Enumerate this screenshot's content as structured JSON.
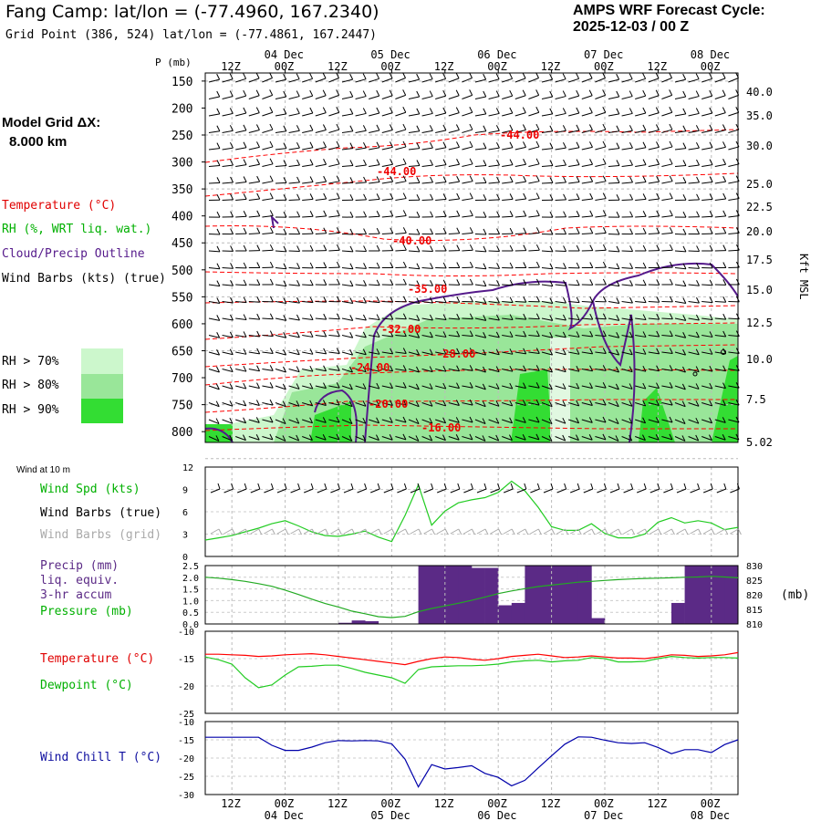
{
  "header": {
    "title": "Fang Camp:  lat/lon = (-77.4960, 167.2340)",
    "grid_point": "Grid Point (386, 524) lat/lon = (-77.4861, 167.2447)",
    "cycle_line1": "AMPS WRF Forecast Cycle:",
    "cycle_line2": "2025-12-03 / 00  Z",
    "model_grid_line1": "Model Grid ΔX:",
    "model_grid_line2": "8.000 km"
  },
  "legend": {
    "temperature": "Temperature (°C)",
    "rh": "RH (%, WRT liq. wat.)",
    "cloud": "Cloud/Precip Outline",
    "wind_barbs": "Wind Barbs (kts) (true)",
    "rh70": "RH > 70%",
    "rh80": "RH > 80%",
    "rh90": "RH > 90%",
    "kft_msl": "Kft MSL",
    "p_mb": "P (mb)",
    "wind_at_10m": "Wind at 10 m",
    "wind_spd": "Wind Spd (kts)",
    "wind_barbs_true": "Wind Barbs (true)",
    "wind_barbs_grid": "Wind Barbs (grid)",
    "precip1": "Precip (mm)",
    "precip2": "liq. equiv.",
    "precip3": "3-hr accum",
    "pressure": "Pressure (mb)",
    "mb_unit": "(mb)",
    "temp2": "Temperature (°C)",
    "dewpoint": "Dewpoint (°C)",
    "windchill": "Wind Chill T (°C)"
  },
  "colors": {
    "temp": "#ff0000",
    "rh": "#00cc00",
    "cloud": "#551a8b",
    "rh70": "#ccf7cc",
    "rh80": "#99e699",
    "rh90": "#33dd33",
    "precip": "#5b2a86",
    "dew": "#22cc22",
    "windchill": "#0000aa",
    "barb_grid": "#aaaaaa"
  },
  "time_axis": {
    "hour_labels": [
      "12Z",
      "00Z",
      "12Z",
      "00Z",
      "12Z",
      "00Z",
      "12Z",
      "00Z",
      "12Z",
      "00Z"
    ],
    "date_labels": [
      "04 Dec",
      "05 Dec",
      "06 Dec",
      "07 Dec",
      "08 Dec"
    ]
  },
  "chart_data": [
    {
      "type": "heatmap",
      "name": "cross-section",
      "y_pressure_ticks": [
        "150",
        "200",
        "250",
        "300",
        "350",
        "400",
        "450",
        "500",
        "550",
        "600",
        "650",
        "700",
        "750",
        "800"
      ],
      "y_height_ticks": [
        "40.0",
        "35.0",
        "30.0",
        "25.0",
        "22.5",
        "20.0",
        "17.5",
        "15.0",
        "12.5",
        "10.0",
        "7.5",
        "5.02"
      ],
      "temperature_labels": [
        {
          "text": "-44.00",
          "t": "2025-12-06 00Z",
          "p": 260
        },
        {
          "text": "-44.00",
          "t": "2025-12-04 21Z",
          "p": 320
        },
        {
          "text": "-40.00",
          "t": "2025-12-05 00Z",
          "p": 455
        },
        {
          "text": "-35.00",
          "t": "2025-12-05 03Z",
          "p": 545
        },
        {
          "text": "-32.00",
          "t": "2025-12-04 21Z",
          "p": 610
        },
        {
          "text": "-28.00",
          "t": "2025-12-05 09Z",
          "p": 660
        },
        {
          "text": "-24.00",
          "t": "2025-12-04 15Z",
          "p": 690
        },
        {
          "text": "-20.00",
          "t": "2025-12-04 18Z",
          "p": 750
        },
        {
          "text": "-16.00",
          "t": "2025-12-05 06Z",
          "p": 795
        }
      ]
    },
    {
      "type": "line",
      "name": "wind-10m",
      "ylim": [
        0,
        12
      ],
      "yticks": [
        "0",
        "3",
        "6",
        "9",
        "12"
      ],
      "hours": [
        0,
        3,
        6,
        9,
        12,
        15,
        18,
        21,
        24,
        27,
        30,
        33,
        36,
        39,
        42,
        45,
        48,
        51,
        54,
        57,
        60,
        63,
        66,
        69,
        72,
        75,
        78,
        81,
        84,
        87,
        90,
        93,
        96,
        99,
        102,
        105,
        108,
        111,
        114,
        117,
        120
      ],
      "series": [
        {
          "values": [
            2.2,
            2.5,
            2.8,
            3.3,
            3.8,
            4.4,
            4.8,
            4.1,
            3.3,
            2.8,
            2.7,
            3.0,
            3.4,
            2.6,
            2.0,
            5.5,
            9.6,
            4.2,
            6.1,
            7.2,
            7.6,
            7.9,
            8.6,
            10.1,
            8.8,
            6.6,
            4.0,
            3.5,
            3.5,
            4.4,
            3.1,
            2.5,
            2.5,
            3.0,
            4.6,
            5.2,
            4.5,
            4.8,
            4.5,
            3.6,
            3.9
          ]
        }
      ]
    },
    {
      "type": "bar",
      "name": "precip-pressure",
      "ylim": [
        0,
        2.5
      ],
      "yticks": [
        "0.0",
        "0.5",
        "1.0",
        "1.5",
        "2.0",
        "2.5"
      ],
      "y2lim": [
        810,
        830
      ],
      "y2ticks": [
        "810",
        "815",
        "820",
        "825",
        "830"
      ],
      "precip": [
        0,
        0,
        0,
        0,
        0,
        0,
        0,
        0,
        0,
        0,
        0.05,
        0.15,
        0.12,
        0,
        0,
        0,
        2.5,
        2.5,
        2.5,
        2.5,
        2.4,
        2.4,
        0.8,
        0.9,
        2.5,
        2.5,
        2.5,
        2.5,
        2.5,
        0.25,
        0,
        0,
        0,
        0,
        0,
        0.9,
        2.5,
        2.5,
        2.5,
        2.5
      ],
      "pressure": [
        826,
        825.7,
        825.2,
        824.6,
        823.8,
        822.9,
        821.6,
        820.1,
        818.5,
        817,
        815.8,
        814.4,
        813.5,
        812.5,
        812.2,
        812.6,
        814.2,
        815.3,
        816.2,
        817.1,
        818.1,
        819.2,
        820.4,
        821.3,
        822.1,
        822.8,
        823.3,
        823.8,
        824.3,
        824.6,
        824.9,
        825.2,
        825.4,
        825.6,
        825.7,
        825.8,
        826,
        826.1,
        826.3,
        826.1,
        825.8
      ]
    },
    {
      "type": "line",
      "name": "temperature-dewpoint",
      "ylim": [
        -25,
        -10
      ],
      "yticks": [
        "-10",
        "-15",
        "-20",
        "-25"
      ],
      "series": [
        {
          "values": [
            -14.2,
            -14.2,
            -14.3,
            -14.4,
            -14.6,
            -14.5,
            -14.3,
            -14.2,
            -14.1,
            -14.3,
            -14.6,
            -14.9,
            -15.2,
            -15.5,
            -15.8,
            -16.1,
            -15.5,
            -15.0,
            -14.7,
            -14.8,
            -15.1,
            -15.3,
            -15.0,
            -14.6,
            -14.4,
            -14.2,
            -14.5,
            -14.8,
            -14.7,
            -14.5,
            -14.7,
            -14.9,
            -14.9,
            -15.0,
            -14.7,
            -14.3,
            -14.4,
            -14.6,
            -14.5,
            -14.3,
            -13.9
          ]
        },
        {
          "values": [
            -14.7,
            -15.2,
            -16.0,
            -18.5,
            -20.3,
            -19.8,
            -18.0,
            -16.5,
            -16.4,
            -16.2,
            -16.2,
            -16.8,
            -17.5,
            -18.0,
            -18.5,
            -19.5,
            -17.0,
            -16.5,
            -16.4,
            -16.3,
            -16.3,
            -16.2,
            -16.0,
            -15.6,
            -15.4,
            -15.3,
            -15.6,
            -15.4,
            -15.3,
            -14.8,
            -15.0,
            -15.6,
            -15.6,
            -15.5,
            -15.0,
            -14.6,
            -14.8,
            -14.9,
            -14.8,
            -14.8,
            -14.9
          ]
        }
      ]
    },
    {
      "type": "line",
      "name": "wind-chill",
      "ylim": [
        -30,
        -10
      ],
      "yticks": [
        "-10",
        "-15",
        "-20",
        "-25",
        "-30"
      ],
      "series": [
        {
          "values": [
            -14.3,
            -14.3,
            -14.3,
            -14.3,
            -14.3,
            -16.5,
            -17.9,
            -17.9,
            -17.0,
            -15.8,
            -15.2,
            -15.3,
            -15.2,
            -15.3,
            -16.1,
            -20.3,
            -27.9,
            -21.8,
            -23.0,
            -22.6,
            -22.1,
            -24.2,
            -25.3,
            -27.6,
            -26.1,
            -22.7,
            -19.4,
            -16.2,
            -14.2,
            -14.3,
            -15.1,
            -15.8,
            -16.0,
            -15.8,
            -17.1,
            -18.8,
            -17.7,
            -17.7,
            -18.5,
            -16.3,
            -15.0
          ]
        }
      ]
    }
  ]
}
